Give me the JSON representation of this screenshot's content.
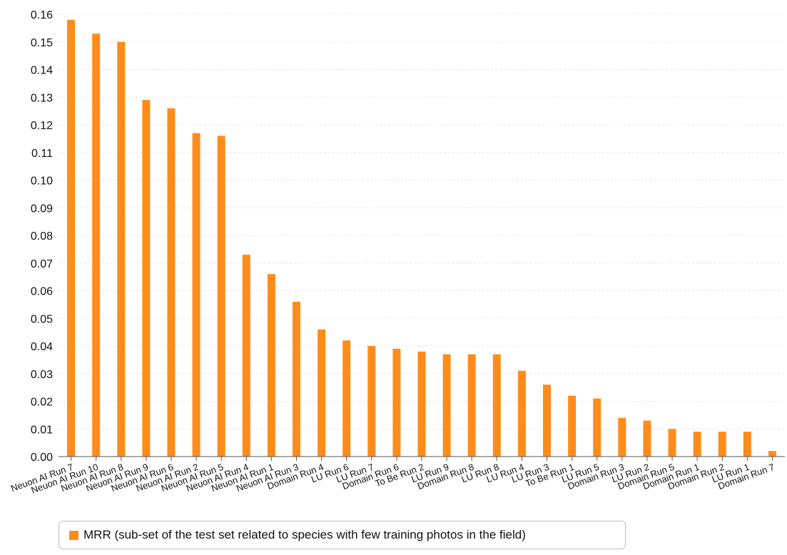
{
  "chart_data": {
    "type": "bar",
    "title": "",
    "xlabel": "",
    "ylabel": "",
    "ylim": [
      0,
      0.16
    ],
    "yticks": [
      "0.00",
      "0.01",
      "0.02",
      "0.03",
      "0.04",
      "0.05",
      "0.06",
      "0.07",
      "0.08",
      "0.09",
      "0.10",
      "0.11",
      "0.12",
      "0.13",
      "0.14",
      "0.15",
      "0.16"
    ],
    "grid": true,
    "legend_position": "bottom-left",
    "bar_color": "#ff8c1a",
    "categories": [
      "Neuon AI Run 7",
      "Neuon AI Run 10",
      "Neuon AI Run 8",
      "Neuon AI Run 9",
      "Neuon AI Run 6",
      "Neuon AI Run 2",
      "Neuon AI Run 5",
      "Neuon AI Run 4",
      "Neuon AI Run 1",
      "Neuon AI Run 3",
      "Domain Run 4",
      "LU Run 6",
      "LU Run 7",
      "Domain Run 6",
      "To Be Run 2",
      "LU Run 9",
      "Domain Run 8",
      "LU Run 8",
      "LU Run 4",
      "LU Run 3",
      "To Be Run 1",
      "LU Run 5",
      "Domain Run 3",
      "LU Run 2",
      "Domain Run 5",
      "Domain Run 1",
      "Domain Run 2",
      "LU Run 1",
      "Domain Run 7"
    ],
    "series": [
      {
        "name": "MRR (sub-set of the test set related to species with few training photos in the field)",
        "values": [
          0.158,
          0.153,
          0.15,
          0.129,
          0.126,
          0.117,
          0.116,
          0.073,
          0.066,
          0.056,
          0.046,
          0.042,
          0.04,
          0.039,
          0.038,
          0.037,
          0.037,
          0.037,
          0.031,
          0.026,
          0.022,
          0.021,
          0.014,
          0.013,
          0.01,
          0.009,
          0.009,
          0.009,
          0.002
        ]
      }
    ]
  }
}
